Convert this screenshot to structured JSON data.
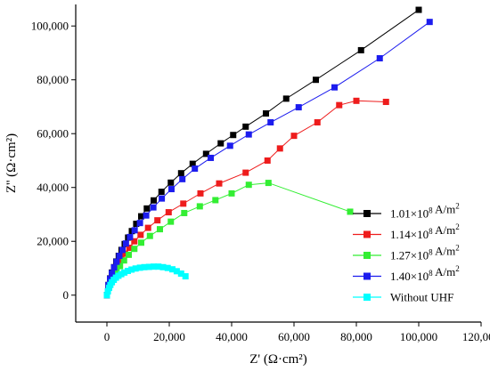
{
  "chart_data": {
    "type": "scatter",
    "title": "",
    "xlabel": "Z' (Ω·cm²)",
    "ylabel": "Z'' (Ω·cm²)",
    "xlim": [
      -10000,
      120000
    ],
    "ylim": [
      -10000,
      108000
    ],
    "x_ticks": [
      0,
      20000,
      40000,
      60000,
      80000,
      100000,
      120000
    ],
    "x_tick_labels": [
      "0",
      "20,000",
      "40,000",
      "60,000",
      "80,000",
      "100,000",
      "120,000"
    ],
    "y_ticks": [
      0,
      20000,
      40000,
      60000,
      80000,
      100000
    ],
    "y_tick_labels": [
      "0",
      "20,000",
      "40,000",
      "60,000",
      "80,000",
      "100,000"
    ],
    "grid": false,
    "legend_position": "bottom-right",
    "series": [
      {
        "name": "1.01×10⁸ A/m²",
        "label_main": "1.01×10",
        "label_exp": "8",
        "label_unit": " A/m",
        "label_unit_exp": "2",
        "color": "#000000",
        "marker": "square",
        "x": [
          0,
          500,
          1000,
          1600,
          2300,
          3000,
          3800,
          4700,
          5700,
          6800,
          8000,
          9400,
          11000,
          12800,
          15000,
          17500,
          20500,
          23800,
          27500,
          31800,
          36500,
          40500,
          44500,
          51000,
          57500,
          67000,
          81500,
          100000
        ],
        "y": [
          0,
          3800,
          6200,
          8400,
          10400,
          12500,
          14600,
          16800,
          19000,
          21400,
          23800,
          26500,
          29300,
          32200,
          35200,
          38400,
          41800,
          45300,
          48800,
          52500,
          56400,
          59500,
          62600,
          67500,
          73000,
          80000,
          91000,
          106000
        ]
      },
      {
        "name": "1.14×10⁸ A/m²",
        "label_main": "1.14×10",
        "label_exp": "8",
        "label_unit": " A/m",
        "label_unit_exp": "2",
        "color": "#ee1c1c",
        "marker": "square",
        "x": [
          0,
          600,
          1200,
          1900,
          2700,
          3600,
          4600,
          5800,
          7200,
          8800,
          10800,
          13200,
          16200,
          19800,
          24500,
          30000,
          36000,
          44500,
          51500,
          55500,
          60000,
          67500,
          74500,
          80000,
          89500
        ],
        "y": [
          0,
          3300,
          5400,
          7400,
          9300,
          11300,
          13300,
          15400,
          17600,
          20000,
          22400,
          25000,
          27800,
          30800,
          34000,
          37800,
          41500,
          45500,
          50000,
          54500,
          59200,
          64200,
          70600,
          72200,
          71800
        ]
      },
      {
        "name": "1.27×10⁸ A/m²",
        "label_main": "1.27×10",
        "label_exp": "8",
        "label_unit": " A/m",
        "label_unit_exp": "2",
        "color": "#33ee33",
        "marker": "square",
        "x": [
          0,
          700,
          1400,
          2200,
          3100,
          4200,
          5500,
          7000,
          8800,
          11000,
          13800,
          17000,
          20500,
          24800,
          29800,
          34800,
          40000,
          45500,
          51800,
          78000
        ],
        "y": [
          0,
          3000,
          5000,
          6900,
          8800,
          10800,
          12900,
          15000,
          17200,
          19500,
          22000,
          24500,
          27300,
          30500,
          33000,
          35300,
          37800,
          41000,
          41700,
          31000
        ]
      },
      {
        "name": "1.40×10⁸ A/m²",
        "label_main": "1.40×10",
        "label_exp": "8",
        "label_unit": " A/m",
        "label_unit_exp": "2",
        "color": "#1c1cee",
        "marker": "square",
        "x": [
          0,
          500,
          1000,
          1600,
          2300,
          3100,
          4000,
          5000,
          6100,
          7400,
          8900,
          10600,
          12600,
          14900,
          17600,
          20700,
          24200,
          28200,
          33300,
          39500,
          45500,
          52500,
          61500,
          73000,
          87500,
          103500
        ],
        "y": [
          0,
          3700,
          6000,
          8200,
          10300,
          12400,
          14600,
          16800,
          19200,
          21600,
          24100,
          26800,
          29600,
          32600,
          35900,
          39400,
          43100,
          47000,
          51000,
          55500,
          59700,
          64200,
          69800,
          77200,
          88000,
          101500
        ]
      },
      {
        "name": "Without UHF",
        "label_main": "Without UHF",
        "label_exp": "",
        "label_unit": "",
        "label_unit_exp": "",
        "color": "#00ffff",
        "marker": "square",
        "x": [
          0,
          300,
          700,
          1100,
          1600,
          2200,
          2900,
          3700,
          4600,
          5600,
          6700,
          7900,
          9200,
          10600,
          12000,
          13500,
          15000,
          16500,
          18000,
          19500,
          21000,
          22400,
          23800,
          25200
        ],
        "y": [
          0,
          1400,
          2700,
          3800,
          4800,
          5700,
          6500,
          7200,
          7800,
          8400,
          9000,
          9500,
          9900,
          10200,
          10400,
          10500,
          10600,
          10600,
          10400,
          10100,
          9600,
          8900,
          8000,
          7000
        ]
      }
    ]
  }
}
